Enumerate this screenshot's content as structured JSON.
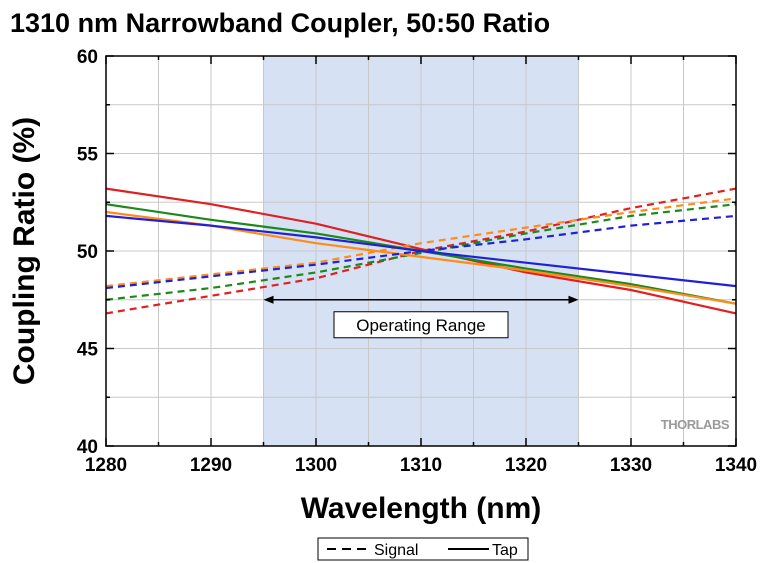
{
  "chart_data": {
    "type": "line",
    "title": "1310 nm Narrowband Coupler, 50:50 Ratio",
    "xlabel": "Wavelength (nm)",
    "ylabel": "Coupling Ratio (%)",
    "xlim": [
      1280,
      1340
    ],
    "ylim": [
      40,
      60
    ],
    "xticks": [
      1280,
      1290,
      1300,
      1310,
      1320,
      1330,
      1340
    ],
    "yticks": [
      40,
      45,
      50,
      55,
      60
    ],
    "minor_ticks": {
      "x_step": 5,
      "y_step": 2.5
    },
    "grid": true,
    "shaded_region": {
      "x": [
        1295,
        1325
      ],
      "color": "#d6e1f3"
    },
    "annotation": {
      "text": "Operating Range",
      "x": [
        1295,
        1325
      ],
      "y": 47.5
    },
    "watermark": "THORLABS",
    "legend": {
      "placement": "bottom-center",
      "entries": [
        {
          "label": "Signal",
          "style": "dashed"
        },
        {
          "label": "Tap",
          "style": "solid"
        }
      ]
    },
    "series": [
      {
        "color": "#e02020",
        "style": "dashed",
        "x": [
          1280,
          1290,
          1300,
          1310,
          1320,
          1330,
          1340
        ],
        "y": [
          46.8,
          47.7,
          48.6,
          50.0,
          51.0,
          52.2,
          53.2
        ]
      },
      {
        "color": "#e02020",
        "style": "solid",
        "x": [
          1280,
          1290,
          1300,
          1310,
          1320,
          1330,
          1340
        ],
        "y": [
          53.2,
          52.4,
          51.4,
          50.1,
          48.9,
          48.0,
          46.8
        ]
      },
      {
        "color": "#1a8a1a",
        "style": "dashed",
        "x": [
          1280,
          1290,
          1300,
          1310,
          1320,
          1330,
          1340
        ],
        "y": [
          47.5,
          48.1,
          48.9,
          49.9,
          50.9,
          51.8,
          52.4
        ]
      },
      {
        "color": "#1a8a1a",
        "style": "solid",
        "x": [
          1280,
          1290,
          1300,
          1310,
          1320,
          1330,
          1340
        ],
        "y": [
          52.4,
          51.6,
          50.9,
          50.0,
          49.1,
          48.3,
          47.3
        ]
      },
      {
        "color": "#ff8c1a",
        "style": "dashed",
        "x": [
          1280,
          1290,
          1300,
          1310,
          1320,
          1330,
          1340
        ],
        "y": [
          48.2,
          48.8,
          49.4,
          50.4,
          51.2,
          52.0,
          52.7
        ]
      },
      {
        "color": "#ff8c1a",
        "style": "solid",
        "x": [
          1280,
          1290,
          1300,
          1310,
          1320,
          1330,
          1340
        ],
        "y": [
          52.0,
          51.3,
          50.4,
          49.7,
          49.0,
          48.2,
          47.3
        ]
      },
      {
        "color": "#2020d8",
        "style": "dashed",
        "x": [
          1280,
          1290,
          1300,
          1310,
          1320,
          1330,
          1340
        ],
        "y": [
          48.1,
          48.7,
          49.3,
          50.0,
          50.6,
          51.3,
          51.8
        ]
      },
      {
        "color": "#2020d8",
        "style": "solid",
        "x": [
          1280,
          1290,
          1300,
          1310,
          1320,
          1330,
          1340
        ],
        "y": [
          51.8,
          51.3,
          50.7,
          50.0,
          49.4,
          48.8,
          48.2
        ]
      }
    ]
  }
}
